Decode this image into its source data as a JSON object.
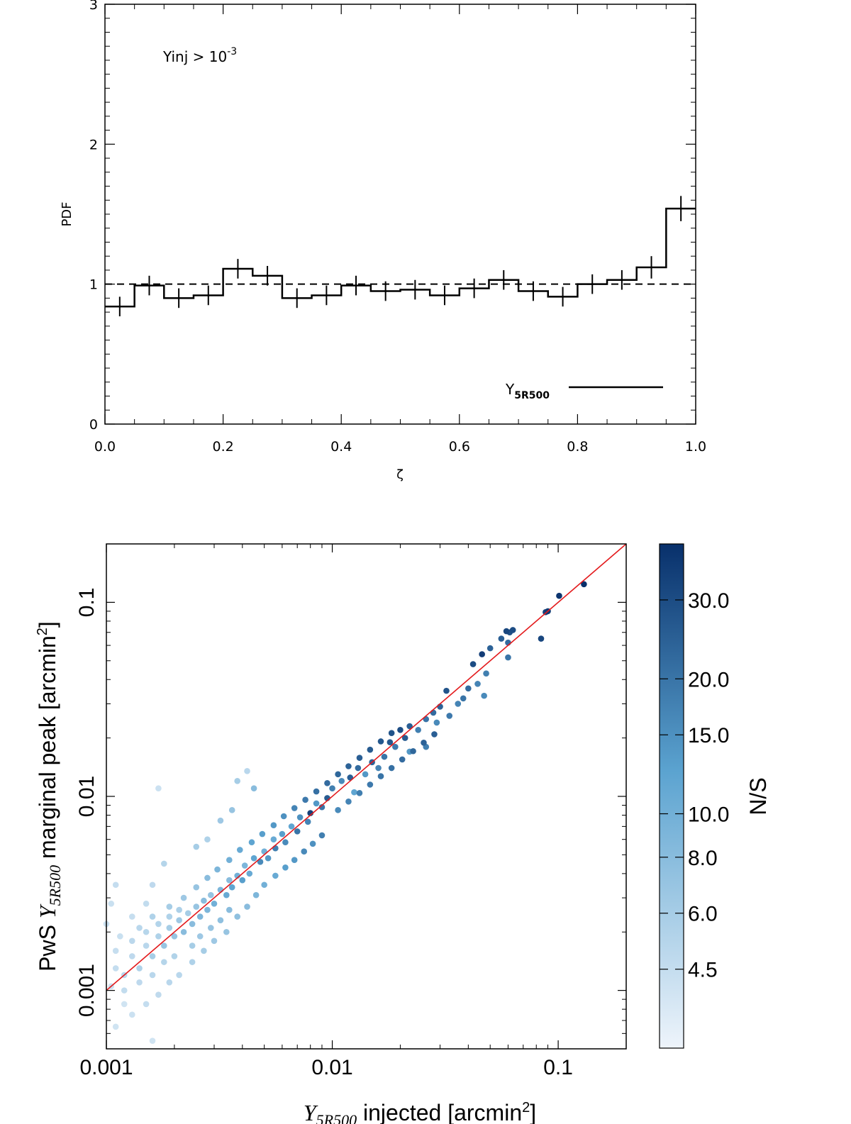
{
  "chart_data": [
    {
      "type": "histogram",
      "title": "",
      "xlabel": "ζ",
      "ylabel": "PDF",
      "xlim": [
        0,
        1
      ],
      "ylim": [
        0,
        3
      ],
      "x_tick_labels": [
        "0.0",
        "0.2",
        "0.4",
        "0.6",
        "0.8",
        "1.0"
      ],
      "y_tick_labels": [
        "0",
        "1",
        "2",
        "3"
      ],
      "annotation": {
        "text": "Yinj > 10",
        "superscript": "-3"
      },
      "legend": {
        "text": "Y",
        "subscript": "5R500",
        "position": "bottom-right"
      },
      "reference_line": 1.0,
      "bin_width": 0.05,
      "bin_centers": [
        0.025,
        0.075,
        0.125,
        0.175,
        0.225,
        0.275,
        0.325,
        0.375,
        0.425,
        0.475,
        0.525,
        0.575,
        0.625,
        0.675,
        0.725,
        0.775,
        0.825,
        0.875,
        0.925,
        0.975
      ],
      "values": [
        0.84,
        0.99,
        0.9,
        0.92,
        1.11,
        1.06,
        0.9,
        0.92,
        0.99,
        0.95,
        0.96,
        0.92,
        0.97,
        1.03,
        0.95,
        0.91,
        1.0,
        1.03,
        1.12,
        1.54
      ],
      "errors": [
        0.07,
        0.07,
        0.07,
        0.07,
        0.07,
        0.07,
        0.07,
        0.07,
        0.07,
        0.07,
        0.07,
        0.07,
        0.07,
        0.07,
        0.07,
        0.07,
        0.07,
        0.07,
        0.08,
        0.09
      ]
    },
    {
      "type": "scatter",
      "xscale": "log",
      "yscale": "log",
      "xlim": [
        0.001,
        0.2
      ],
      "ylim": [
        0.0005,
        0.2
      ],
      "x_tick_labels": [
        "0.001",
        "0.01",
        "0.1"
      ],
      "y_tick_labels": [
        "0.001",
        "0.01",
        "0.1"
      ],
      "xlabel": {
        "symbol": "Y",
        "subscript": "5R500",
        "text": " injected [arcmin",
        "sup": "2",
        "end": "]"
      },
      "ylabel": {
        "prefix": "PwS ",
        "symbol": "Y",
        "subscript": "5R500",
        "text": " marginal peak [arcmin",
        "sup": "2",
        "end": "]"
      },
      "reference_line": "y = x",
      "reference_color": "#e31a1c",
      "color_scale": "N/S",
      "colorbar_label": "N/S",
      "colorbar_ticks": [
        "30.0",
        "20.0",
        "15.0",
        "10.0",
        "8.0",
        "6.0",
        "4.5"
      ],
      "colorbar_tick_values": [
        30,
        20,
        15,
        10,
        8,
        6,
        4.5
      ],
      "colorbar_range": [
        3,
        40
      ],
      "colors": {
        "low": "#eef4fb",
        "mid": "#5ba3d0",
        "high": "#08306b"
      },
      "points": [
        [
          0.13,
          0.124,
          40
        ],
        [
          0.101,
          0.108,
          38
        ],
        [
          0.09,
          0.09,
          36
        ],
        [
          0.088,
          0.089,
          33
        ],
        [
          0.084,
          0.065,
          32
        ],
        [
          0.063,
          0.072,
          30
        ],
        [
          0.061,
          0.07,
          29
        ],
        [
          0.059,
          0.071,
          32
        ],
        [
          0.056,
          0.065,
          25
        ],
        [
          0.06,
          0.062,
          22
        ],
        [
          0.06,
          0.052,
          20
        ],
        [
          0.05,
          0.058,
          24
        ],
        [
          0.046,
          0.054,
          35
        ],
        [
          0.042,
          0.048,
          30
        ],
        [
          0.048,
          0.043,
          18
        ],
        [
          0.044,
          0.038,
          17
        ],
        [
          0.047,
          0.033,
          16
        ],
        [
          0.04,
          0.036,
          22
        ],
        [
          0.038,
          0.032,
          20
        ],
        [
          0.036,
          0.03,
          17
        ],
        [
          0.032,
          0.035,
          28
        ],
        [
          0.03,
          0.029,
          24
        ],
        [
          0.033,
          0.026,
          19
        ],
        [
          0.028,
          0.027,
          22
        ],
        [
          0.029,
          0.024,
          16
        ],
        [
          0.026,
          0.025,
          20
        ],
        [
          0.024,
          0.022,
          18
        ],
        [
          0.026,
          0.018,
          18
        ],
        [
          0.022,
          0.023,
          25
        ],
        [
          0.021,
          0.02,
          26
        ],
        [
          0.02,
          0.022,
          30
        ],
        [
          0.022,
          0.017,
          14
        ],
        [
          0.019,
          0.018,
          19
        ],
        [
          0.018,
          0.019,
          27
        ],
        [
          0.017,
          0.016,
          20
        ],
        [
          0.016,
          0.014,
          17
        ],
        [
          0.015,
          0.015,
          24
        ],
        [
          0.014,
          0.013,
          14
        ],
        [
          0.013,
          0.014,
          22
        ],
        [
          0.012,
          0.0125,
          25
        ],
        [
          0.011,
          0.012,
          16
        ],
        [
          0.0125,
          0.0105,
          12
        ],
        [
          0.01,
          0.011,
          18
        ],
        [
          0.0095,
          0.0098,
          26
        ],
        [
          0.009,
          0.0088,
          20
        ],
        [
          0.0085,
          0.0092,
          14
        ],
        [
          0.008,
          0.0082,
          34
        ],
        [
          0.0078,
          0.0074,
          17
        ],
        [
          0.0072,
          0.0078,
          15
        ],
        [
          0.007,
          0.0066,
          20
        ],
        [
          0.0066,
          0.007,
          12
        ],
        [
          0.0062,
          0.0058,
          16
        ],
        [
          0.006,
          0.0064,
          13
        ],
        [
          0.0056,
          0.0054,
          18
        ],
        [
          0.0055,
          0.006,
          11
        ],
        [
          0.0052,
          0.0048,
          14
        ],
        [
          0.005,
          0.0052,
          10
        ],
        [
          0.0048,
          0.0046,
          16
        ],
        [
          0.0045,
          0.0048,
          12
        ],
        [
          0.0043,
          0.004,
          11
        ],
        [
          0.0041,
          0.0044,
          9
        ],
        [
          0.004,
          0.0037,
          13
        ],
        [
          0.0038,
          0.0039,
          10
        ],
        [
          0.0036,
          0.0034,
          12
        ],
        [
          0.0035,
          0.0037,
          8
        ],
        [
          0.0034,
          0.0031,
          11
        ],
        [
          0.0032,
          0.0033,
          9
        ],
        [
          0.003,
          0.0028,
          10
        ],
        [
          0.0029,
          0.0031,
          7
        ],
        [
          0.0028,
          0.0026,
          9
        ],
        [
          0.0027,
          0.0029,
          8
        ],
        [
          0.0026,
          0.0024,
          9
        ],
        [
          0.0025,
          0.0027,
          7
        ],
        [
          0.0024,
          0.0022,
          8
        ],
        [
          0.0023,
          0.0025,
          6
        ],
        [
          0.0022,
          0.002,
          8
        ],
        [
          0.0021,
          0.0023,
          6.5
        ],
        [
          0.002,
          0.0019,
          7
        ],
        [
          0.0019,
          0.0021,
          6
        ],
        [
          0.0018,
          0.0017,
          7
        ],
        [
          0.0017,
          0.0019,
          5.5
        ],
        [
          0.0016,
          0.0015,
          6
        ],
        [
          0.0015,
          0.0017,
          5
        ],
        [
          0.0014,
          0.0013,
          5.5
        ],
        [
          0.0013,
          0.0015,
          4.8
        ],
        [
          0.0012,
          0.0012,
          5
        ],
        [
          0.0011,
          0.0013,
          4.5
        ],
        [
          0.00105,
          0.00105,
          4.2
        ],
        [
          0.0012,
          0.00085,
          4
        ],
        [
          0.00115,
          0.0019,
          4.3
        ],
        [
          0.0013,
          0.0024,
          4.4
        ],
        [
          0.0015,
          0.0028,
          4.6
        ],
        [
          0.0016,
          0.0035,
          4.8
        ],
        [
          0.0018,
          0.0045,
          5.2
        ],
        [
          0.0017,
          0.011,
          4.2
        ],
        [
          0.0025,
          0.0055,
          6
        ],
        [
          0.0028,
          0.006,
          5.5
        ],
        [
          0.0032,
          0.0075,
          6.5
        ],
        [
          0.0036,
          0.0085,
          7
        ],
        [
          0.0042,
          0.0135,
          5
        ],
        [
          0.0045,
          0.011,
          8
        ],
        [
          0.0038,
          0.012,
          6
        ],
        [
          0.0021,
          0.0012,
          5
        ],
        [
          0.0024,
          0.0014,
          5.5
        ],
        [
          0.0027,
          0.0016,
          6
        ],
        [
          0.003,
          0.0018,
          6.5
        ],
        [
          0.0034,
          0.002,
          7
        ],
        [
          0.0038,
          0.0024,
          7.5
        ],
        [
          0.0042,
          0.0027,
          8
        ],
        [
          0.0046,
          0.0031,
          9
        ],
        [
          0.005,
          0.0035,
          10
        ],
        [
          0.0056,
          0.0039,
          11
        ],
        [
          0.0062,
          0.0043,
          13
        ],
        [
          0.0068,
          0.0047,
          14
        ],
        [
          0.0075,
          0.0052,
          16
        ],
        [
          0.0082,
          0.0057,
          15
        ],
        [
          0.009,
          0.0063,
          18
        ],
        [
          0.0011,
          0.00065,
          4
        ],
        [
          0.0013,
          0.00075,
          4.2
        ],
        [
          0.0015,
          0.00085,
          4.5
        ],
        [
          0.0017,
          0.00095,
          4.7
        ],
        [
          0.0019,
          0.0011,
          5
        ],
        [
          0.0016,
          0.00055,
          4
        ],
        [
          0.0011,
          0.0016,
          4.4
        ],
        [
          0.001,
          0.0022,
          4.2
        ],
        [
          0.00105,
          0.0028,
          4.3
        ],
        [
          0.0011,
          0.0035,
          4.5
        ],
        [
          0.0014,
          0.0021,
          5
        ],
        [
          0.0016,
          0.0024,
          5.5
        ],
        [
          0.0019,
          0.0027,
          6
        ],
        [
          0.0022,
          0.003,
          6.5
        ],
        [
          0.0025,
          0.0034,
          7
        ],
        [
          0.0028,
          0.0038,
          8
        ],
        [
          0.0031,
          0.0042,
          9
        ],
        [
          0.0035,
          0.0047,
          10
        ],
        [
          0.0039,
          0.0053,
          11
        ],
        [
          0.0044,
          0.0058,
          12
        ],
        [
          0.0049,
          0.0064,
          13
        ],
        [
          0.0055,
          0.0071,
          14
        ],
        [
          0.0061,
          0.0079,
          15
        ],
        [
          0.0068,
          0.0087,
          17
        ],
        [
          0.0076,
          0.0096,
          19
        ],
        [
          0.0085,
          0.0106,
          21
        ],
        [
          0.0095,
          0.0117,
          22
        ],
        [
          0.0106,
          0.013,
          23
        ],
        [
          0.0118,
          0.0143,
          24
        ],
        [
          0.0132,
          0.0158,
          25
        ],
        [
          0.0147,
          0.0174,
          26
        ],
        [
          0.0164,
          0.0192,
          27
        ],
        [
          0.0183,
          0.0212,
          28
        ],
        [
          0.0106,
          0.0085,
          16
        ],
        [
          0.0118,
          0.0094,
          17
        ],
        [
          0.0132,
          0.0104,
          18
        ],
        [
          0.0147,
          0.0115,
          19
        ],
        [
          0.0164,
          0.0127,
          20
        ],
        [
          0.0183,
          0.014,
          21
        ],
        [
          0.0204,
          0.0155,
          22
        ],
        [
          0.0228,
          0.0171,
          23
        ],
        [
          0.0254,
          0.0189,
          24
        ],
        [
          0.0283,
          0.0209,
          25
        ],
        [
          0.0024,
          0.0017,
          6
        ],
        [
          0.0026,
          0.0019,
          6.5
        ],
        [
          0.0029,
          0.0021,
          7
        ],
        [
          0.0032,
          0.0023,
          7.5
        ],
        [
          0.0035,
          0.0026,
          8
        ],
        [
          0.0012,
          0.001,
          4.6
        ],
        [
          0.0014,
          0.0011,
          4.8
        ],
        [
          0.0016,
          0.0012,
          5
        ],
        [
          0.0018,
          0.0014,
          5.2
        ],
        [
          0.002,
          0.0015,
          5.4
        ],
        [
          0.0013,
          0.0018,
          4.9
        ],
        [
          0.0015,
          0.002,
          5.1
        ],
        [
          0.0017,
          0.0022,
          5.3
        ],
        [
          0.0019,
          0.0024,
          5.5
        ],
        [
          0.0021,
          0.0026,
          5.7
        ]
      ]
    }
  ]
}
